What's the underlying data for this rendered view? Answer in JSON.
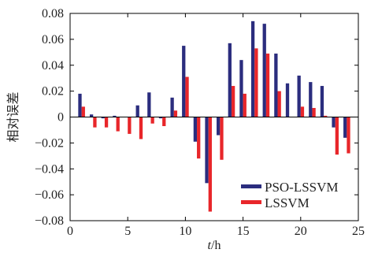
{
  "chart_data": {
    "type": "bar",
    "xlabel": "t/h",
    "xlabel_var": "t",
    "xlabel_unit": "/h",
    "ylabel": "相对误差",
    "xlim": [
      0,
      25
    ],
    "ylim": [
      -0.08,
      0.08
    ],
    "xticks": [
      "0",
      "5",
      "10",
      "15",
      "20",
      "25"
    ],
    "yticks": [
      "0.08",
      "0.06",
      "0.04",
      "0.02",
      "0",
      "−0.02",
      "−0.04",
      "−0.06",
      "−0.08"
    ],
    "legend_position": "bottom-right",
    "x": [
      1,
      2,
      3,
      4,
      5,
      6,
      7,
      8,
      9,
      10,
      11,
      12,
      13,
      14,
      15,
      16,
      17,
      18,
      19,
      20,
      21,
      22,
      23,
      24
    ],
    "series": [
      {
        "name": "PSO-LSSVM",
        "color": "#2b2d7e",
        "values": [
          0.018,
          0.002,
          -0.001,
          0.001,
          0.0,
          0.009,
          0.019,
          -0.001,
          0.015,
          0.055,
          -0.019,
          -0.051,
          -0.014,
          0.057,
          0.044,
          0.074,
          0.072,
          0.049,
          0.026,
          0.032,
          0.027,
          0.024,
          -0.008,
          -0.016
        ]
      },
      {
        "name": "LSSVM",
        "color": "#e8262a",
        "values": [
          0.008,
          -0.008,
          -0.008,
          -0.011,
          -0.013,
          -0.017,
          -0.005,
          -0.007,
          0.005,
          0.031,
          -0.032,
          -0.073,
          -0.033,
          0.024,
          0.018,
          0.053,
          0.049,
          0.02,
          0.0,
          0.008,
          0.007,
          0.001,
          -0.029,
          -0.028
        ]
      }
    ]
  }
}
